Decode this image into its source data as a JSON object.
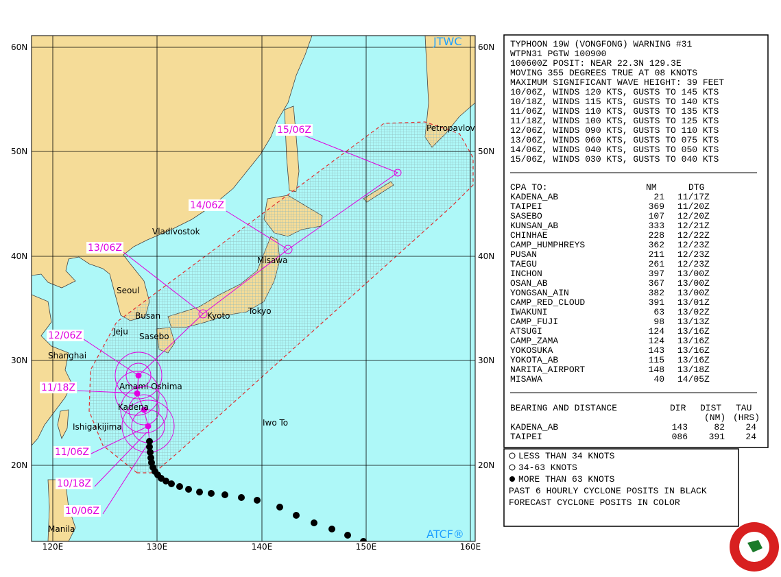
{
  "map": {
    "badge": "JTWC",
    "credit": "ATCF®",
    "lat_labels": [
      "60N",
      "50N",
      "40N",
      "30N",
      "20N"
    ],
    "lon_labels": [
      "120E",
      "130E",
      "140E",
      "150E",
      "160E"
    ],
    "places": [
      "Vladivostok",
      "Seoul",
      "Busan",
      "Jeju",
      "Sasebo",
      "Kyoto",
      "Tokyo",
      "Misawa",
      "Shanghai",
      "Amami Oshima",
      "Kadena",
      "Ishigakijima",
      "Iwo To",
      "Manila",
      "Petropavlov"
    ],
    "forecast_labels": [
      "15/06Z",
      "14/06Z",
      "13/06Z",
      "12/06Z",
      "11/18Z",
      "11/06Z",
      "10/18Z",
      "10/06Z"
    ]
  },
  "warning": {
    "lines": [
      "TYPHOON 19W (VONGFONG) WARNING #31",
      "WTPN31 PGTW 100900",
      "100600Z POSIT: NEAR 22.3N 129.3E",
      "MOVING 355 DEGREES TRUE AT 08 KNOTS",
      "MAXIMUM SIGNIFICANT WAVE HEIGHT: 39 FEET",
      "10/06Z, WINDS 120 KTS, GUSTS TO 145 KTS",
      "10/18Z, WINDS 115 KTS, GUSTS TO 140 KTS",
      "11/06Z, WINDS 110 KTS, GUSTS TO 135 KTS",
      "11/18Z, WINDS 100 KTS, GUSTS TO 125 KTS",
      "12/06Z, WINDS 090 KTS, GUSTS TO 110 KTS",
      "13/06Z, WINDS 060 KTS, GUSTS TO 075 KTS",
      "14/06Z, WINDS 040 KTS, GUSTS TO 050 KTS",
      "15/06Z, WINDS 030 KTS, GUSTS TO 040 KTS"
    ]
  },
  "cpa": {
    "title": "CPA TO:",
    "columns": [
      "NM",
      "DTG"
    ],
    "rows": [
      [
        "KADENA_AB",
        21,
        "11/17Z"
      ],
      [
        "TAIPEI",
        369,
        "11/20Z"
      ],
      [
        "SASEBO",
        107,
        "12/20Z"
      ],
      [
        "KUNSAN_AB",
        333,
        "12/21Z"
      ],
      [
        "CHINHAE",
        228,
        "12/22Z"
      ],
      [
        "CAMP_HUMPHREYS",
        362,
        "12/23Z"
      ],
      [
        "PUSAN",
        211,
        "12/23Z"
      ],
      [
        "TAEGU",
        261,
        "12/23Z"
      ],
      [
        "INCHON",
        397,
        "13/00Z"
      ],
      [
        "OSAN_AB",
        367,
        "13/00Z"
      ],
      [
        "YONGSAN_AIN",
        382,
        "13/00Z"
      ],
      [
        "CAMP_RED_CLOUD",
        391,
        "13/01Z"
      ],
      [
        "IWAKUNI",
        63,
        "13/02Z"
      ],
      [
        "CAMP_FUJI",
        98,
        "13/13Z"
      ],
      [
        "ATSUGI",
        124,
        "13/16Z"
      ],
      [
        "CAMP_ZAMA",
        124,
        "13/16Z"
      ],
      [
        "YOKOSUKA",
        143,
        "13/16Z"
      ],
      [
        "YOKOTA_AB",
        115,
        "13/16Z"
      ],
      [
        "NARITA_AIRPORT",
        148,
        "13/18Z"
      ],
      [
        "MISAWA",
        40,
        "14/05Z"
      ]
    ]
  },
  "bearing": {
    "title": "BEARING AND DISTANCE",
    "columns": [
      "DIR",
      "DIST",
      "TAU"
    ],
    "units": [
      "(NM)",
      "(HRS)"
    ],
    "rows": [
      [
        "KADENA_AB",
        143,
        82,
        24
      ],
      [
        "TAIPEI",
        "086",
        391,
        24
      ]
    ]
  },
  "legend": {
    "items": [
      "LESS THAN 34 KNOTS",
      "34-63 KNOTS",
      "MORE THAN 63 KNOTS",
      "PAST 6 HOURLY CYCLONE POSITS IN BLACK",
      "FORECAST CYCLONE POSITS IN COLOR"
    ]
  }
}
